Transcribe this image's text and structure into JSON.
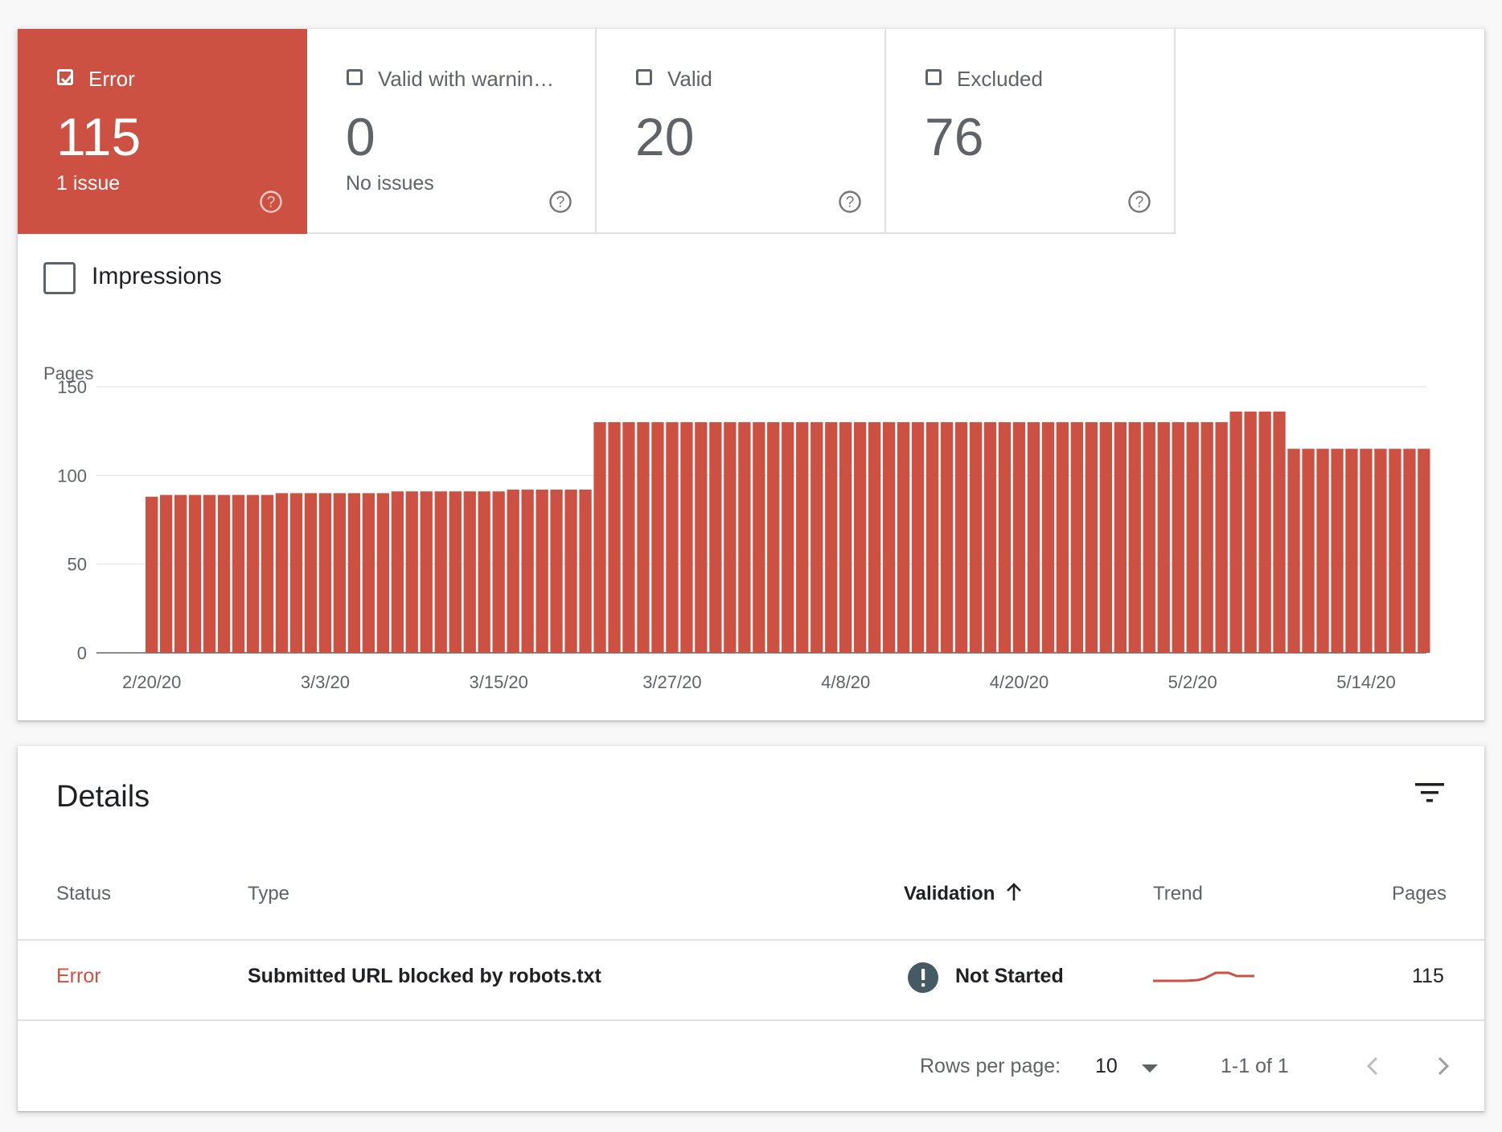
{
  "tiles": [
    {
      "label": "Error",
      "value": "115",
      "sub": "1 issue",
      "checked": true,
      "color": "#cd5142"
    },
    {
      "label": "Valid with warnin…",
      "value": "0",
      "sub": "No issues",
      "checked": false
    },
    {
      "label": "Valid",
      "value": "20",
      "sub": "",
      "checked": false
    },
    {
      "label": "Excluded",
      "value": "76",
      "sub": "",
      "checked": false
    }
  ],
  "impressions": {
    "label": "Impressions",
    "checked": false
  },
  "chart_data": {
    "type": "bar",
    "ylabel": "Pages",
    "ylim": [
      0,
      150
    ],
    "yticks": [
      0,
      50,
      100,
      150
    ],
    "x_ticklabels": [
      "2/20/20",
      "3/3/20",
      "3/15/20",
      "3/27/20",
      "4/8/20",
      "4/20/20",
      "5/2/20",
      "5/14/20"
    ],
    "x_start": "2/20/20",
    "bar_color": "#cd5142",
    "grid": true,
    "values": [
      88,
      89,
      89,
      89,
      89,
      89,
      89,
      89,
      89,
      90,
      90,
      90,
      90,
      90,
      90,
      90,
      90,
      91,
      91,
      91,
      91,
      91,
      91,
      91,
      91,
      92,
      92,
      92,
      92,
      92,
      92,
      130,
      130,
      130,
      130,
      130,
      130,
      130,
      130,
      130,
      130,
      130,
      130,
      130,
      130,
      130,
      130,
      130,
      130,
      130,
      130,
      130,
      130,
      130,
      130,
      130,
      130,
      130,
      130,
      130,
      130,
      130,
      130,
      130,
      130,
      130,
      130,
      130,
      130,
      130,
      130,
      130,
      130,
      130,
      130,
      136,
      136,
      136,
      136,
      115,
      115,
      115,
      115,
      115,
      115,
      115,
      115,
      115,
      115
    ]
  },
  "details": {
    "title": "Details",
    "columns": {
      "status": "Status",
      "type": "Type",
      "validation": "Validation",
      "trend": "Trend",
      "pages": "Pages"
    },
    "rows": [
      {
        "status": "Error",
        "type": "Submitted URL blocked by robots.txt",
        "validation": "Not Started",
        "pages": "115"
      }
    ],
    "pagination": {
      "rows_per_page_label": "Rows per page:",
      "rows_per_page": "10",
      "range": "1-1 of 1"
    }
  },
  "colors": {
    "error": "#cd5142",
    "muted": "#5f6368",
    "validation_icon": "#455a64"
  },
  "icons": [
    "checkbox-checked-icon",
    "checkbox-icon",
    "help-icon",
    "filter-icon",
    "arrow-up-icon",
    "exclamation-icon",
    "dropdown-arrow-icon",
    "chevron-left-icon",
    "chevron-right-icon"
  ]
}
